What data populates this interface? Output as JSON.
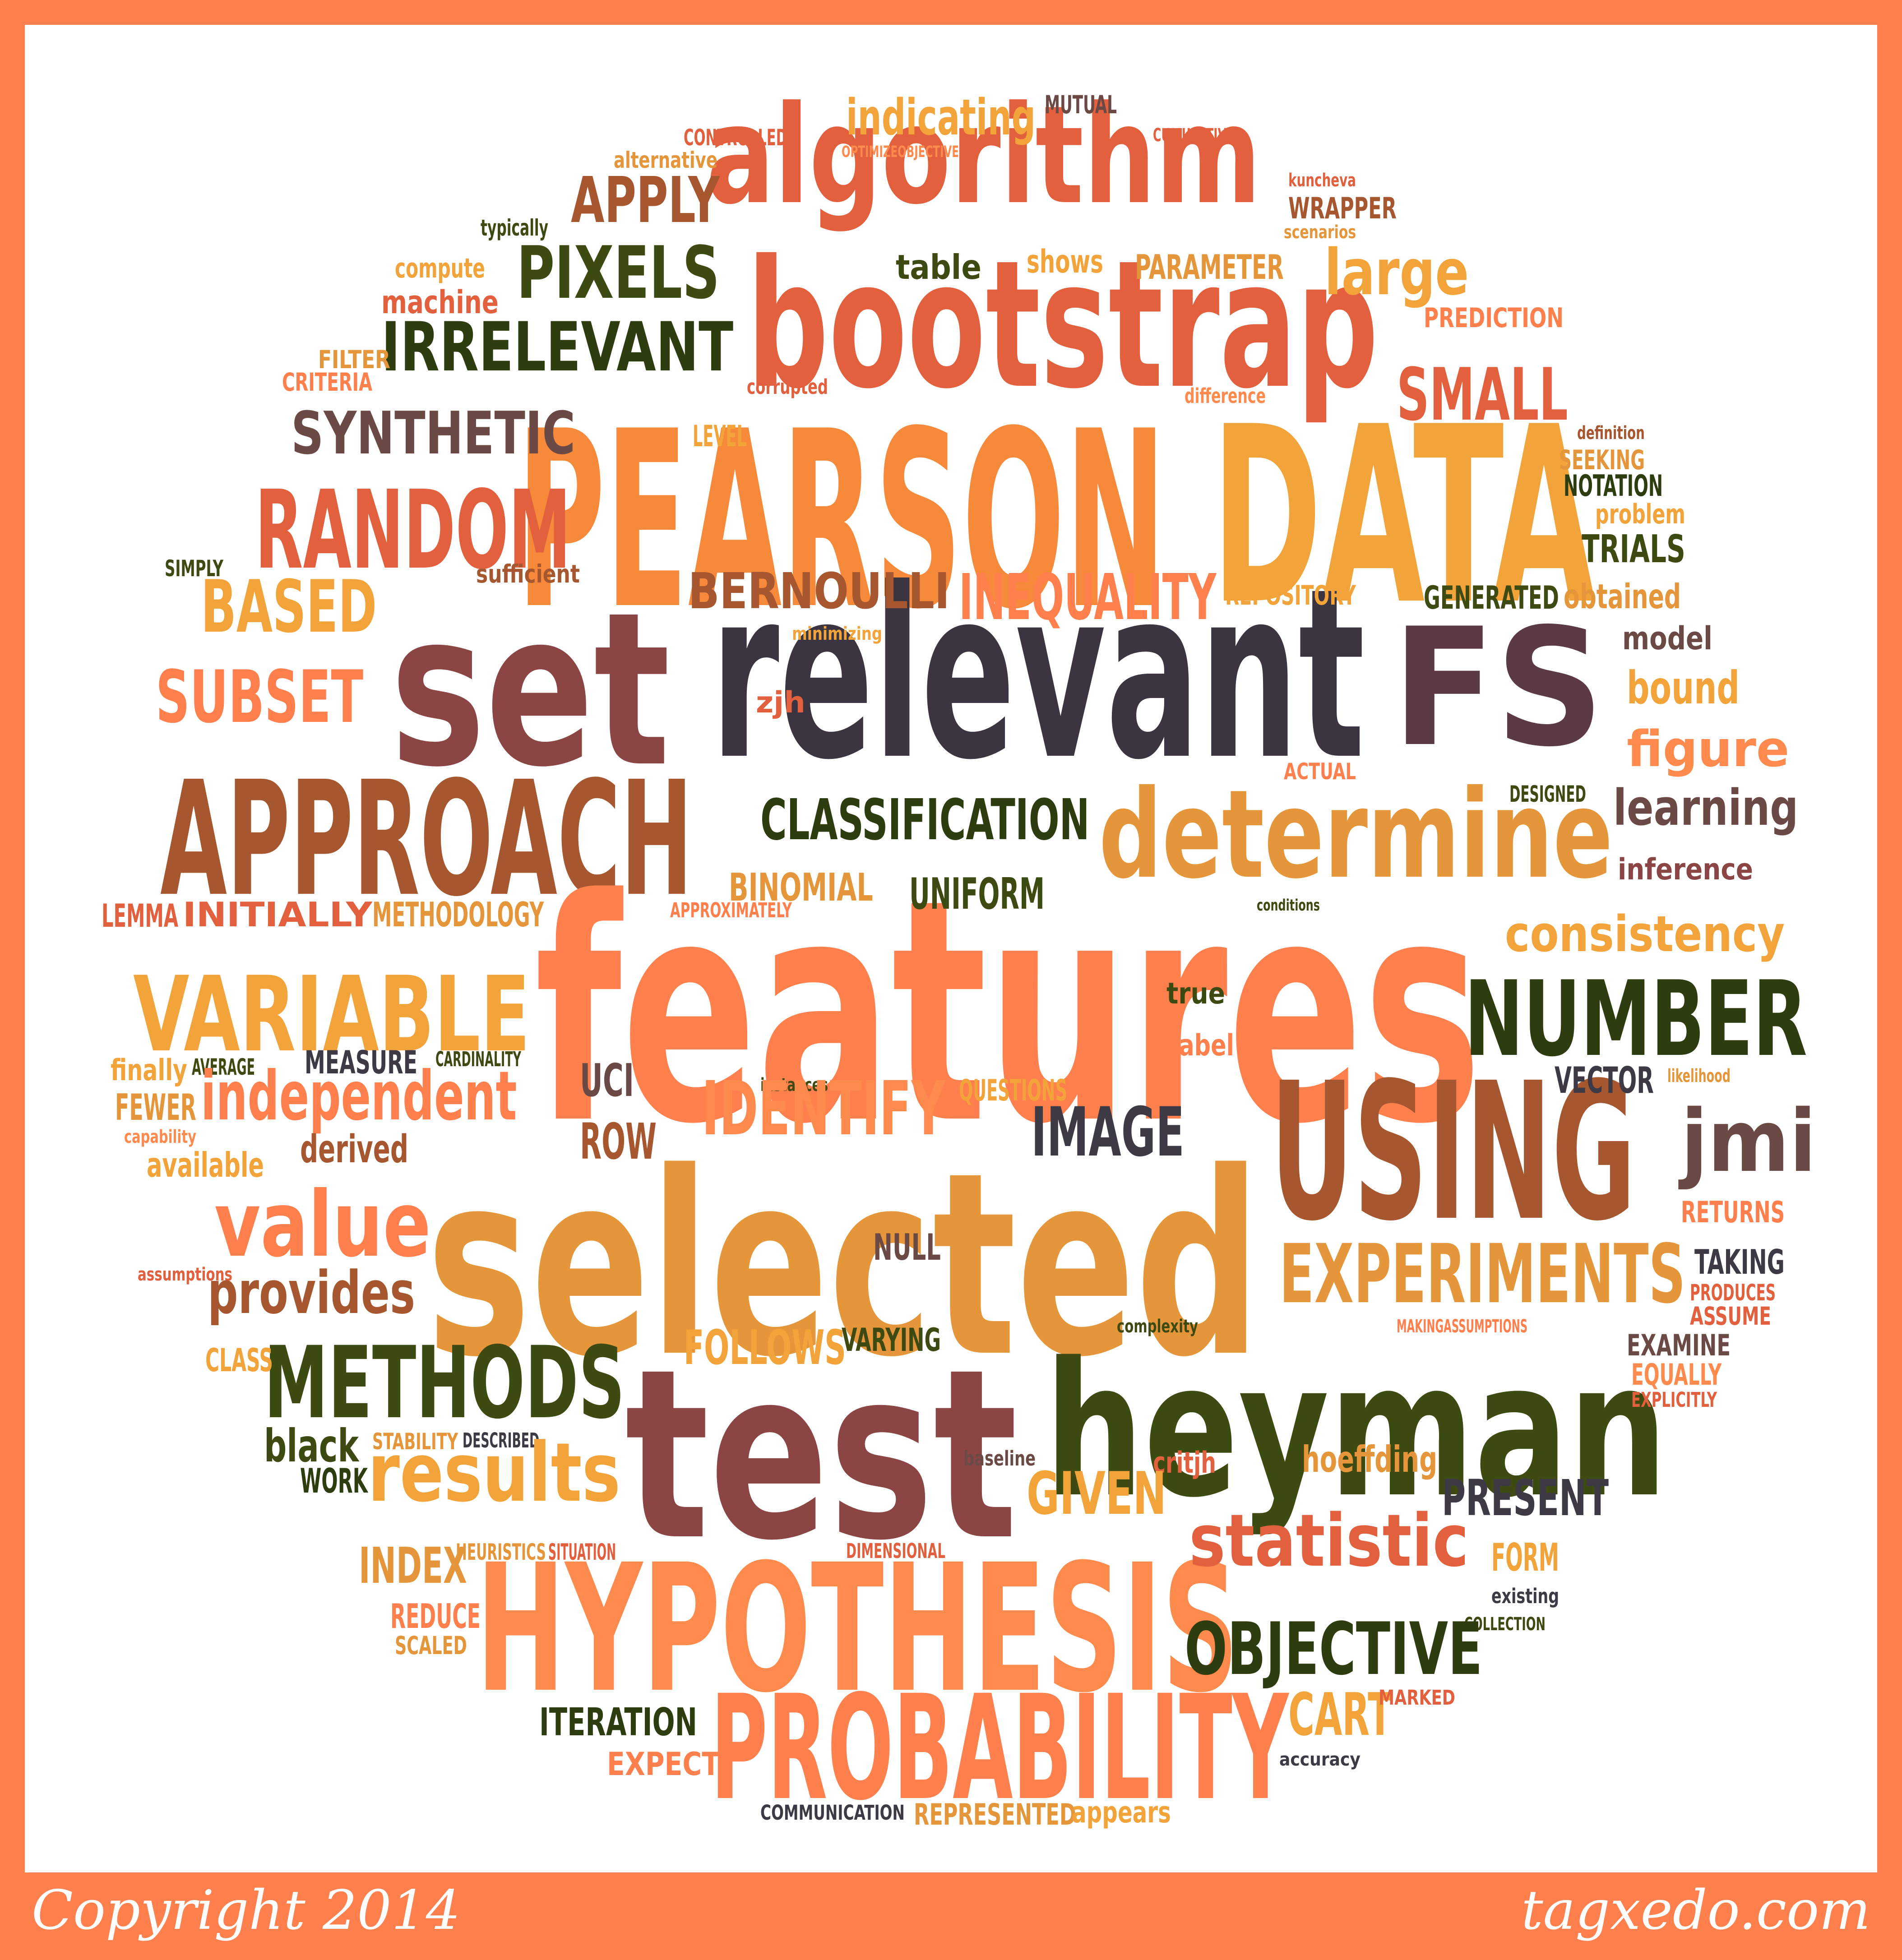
{
  "footer": {
    "copyright": "Copyright 2014",
    "brand": "tagxedo.com"
  },
  "colors": {
    "frame": "#ff7f4d",
    "background": "#ffffff"
  },
  "words": [
    {
      "text": "PEARSON",
      "color": "#f7893a"
    },
    {
      "text": "DATA",
      "color": "#f2a33a"
    },
    {
      "text": "bootstrap",
      "color": "#e2603d"
    },
    {
      "text": "algorithm",
      "color": "#e2603d"
    },
    {
      "text": "relevant",
      "color": "#3a3540"
    },
    {
      "text": "FS",
      "color": "#5b3a45"
    },
    {
      "text": "set",
      "color": "#8b4545"
    },
    {
      "text": "APPROACH",
      "color": "#a6572f"
    },
    {
      "text": "determine",
      "color": "#e6963a"
    },
    {
      "text": "features",
      "color": "#ff7f4d"
    },
    {
      "text": "selected",
      "color": "#e6963a"
    },
    {
      "text": "test",
      "color": "#8b4545"
    },
    {
      "text": "heyman",
      "color": "#3d4a12"
    },
    {
      "text": "USING",
      "color": "#a6572f"
    },
    {
      "text": "HYPOTHESIS",
      "color": "#ff8a4d"
    },
    {
      "text": "PROBABILITY",
      "color": "#ff7f4d"
    },
    {
      "text": "NUMBER",
      "color": "#2d3d10"
    },
    {
      "text": "VARIABLE",
      "color": "#f2a33a"
    },
    {
      "text": "RANDOM",
      "color": "#e2603d"
    },
    {
      "text": "METHODS",
      "color": "#3d4a12"
    },
    {
      "text": "PIXELS",
      "color": "#3d4a12"
    },
    {
      "text": "IRRELEVANT",
      "color": "#2d3d10"
    },
    {
      "text": "SYNTHETIC",
      "color": "#6b4a45"
    },
    {
      "text": "SMALL",
      "color": "#e2603d"
    },
    {
      "text": "large",
      "color": "#f2a33a"
    },
    {
      "text": "APPLY",
      "color": "#a6572f"
    },
    {
      "text": "indicating",
      "color": "#f2a33a"
    },
    {
      "text": "table",
      "color": "#3d4a12"
    },
    {
      "text": "shows",
      "color": "#f2a33a"
    },
    {
      "text": "PARAMETER",
      "color": "#e6963a"
    },
    {
      "text": "machine",
      "color": "#e2603d"
    },
    {
      "text": "compute",
      "color": "#f2a33a"
    },
    {
      "text": "typically",
      "color": "#3d4a12"
    },
    {
      "text": "alternative",
      "color": "#e6963a"
    },
    {
      "text": "CONTROLLED",
      "color": "#e2603d"
    },
    {
      "text": "OPTIMIZEOBJECTIVE",
      "color": "#ff8a4d"
    },
    {
      "text": "MUTUAL",
      "color": "#6b4a45"
    },
    {
      "text": "CUMULATIVE",
      "color": "#e2603d"
    },
    {
      "text": "kuncheva",
      "color": "#e2603d"
    },
    {
      "text": "WRAPPER",
      "color": "#a6572f"
    },
    {
      "text": "scenarios",
      "color": "#e6963a"
    },
    {
      "text": "PREDICTION",
      "color": "#ff7f4d"
    },
    {
      "text": "FILTER",
      "color": "#e6963a"
    },
    {
      "text": "CRITERIA",
      "color": "#ff7f4d"
    },
    {
      "text": "corrupted",
      "color": "#e2603d"
    },
    {
      "text": "difference",
      "color": "#ff8a4d"
    },
    {
      "text": "LEVEL",
      "color": "#f2a33a"
    },
    {
      "text": "definition",
      "color": "#a6572f"
    },
    {
      "text": "SEEKING",
      "color": "#e6963a"
    },
    {
      "text": "NOTATION",
      "color": "#2d3d10"
    },
    {
      "text": "problem",
      "color": "#f2a33a"
    },
    {
      "text": "TRIALS",
      "color": "#3d4a12"
    },
    {
      "text": "SIMPLY",
      "color": "#3d4a12"
    },
    {
      "text": "sufficient",
      "color": "#a6572f"
    },
    {
      "text": "BERNOULLI",
      "color": "#a6572f"
    },
    {
      "text": "INEQUALITY",
      "color": "#ff7f4d"
    },
    {
      "text": "REPOSITORY",
      "color": "#f2a33a"
    },
    {
      "text": "GENERATED",
      "color": "#3d4a12"
    },
    {
      "text": "obtained",
      "color": "#e6963a"
    },
    {
      "text": "BASED",
      "color": "#f2a33a"
    },
    {
      "text": "SUBSET",
      "color": "#ff7f4d"
    },
    {
      "text": "minimizing",
      "color": "#f2a33a"
    },
    {
      "text": "model",
      "color": "#6b4a45"
    },
    {
      "text": "bound",
      "color": "#f2a33a"
    },
    {
      "text": "figure",
      "color": "#ff8a4d"
    },
    {
      "text": "zjh",
      "color": "#e2603d"
    },
    {
      "text": "ACTUAL",
      "color": "#ff7f4d"
    },
    {
      "text": "DESIGNED",
      "color": "#3d4a12"
    },
    {
      "text": "learning",
      "color": "#6b4a45"
    },
    {
      "text": "CLASSIFICATION",
      "color": "#2d3d10"
    },
    {
      "text": "BINOMIAL",
      "color": "#e6963a"
    },
    {
      "text": "UNIFORM",
      "color": "#3d4a12"
    },
    {
      "text": "inference",
      "color": "#8b4545"
    },
    {
      "text": "consistency",
      "color": "#f2a33a"
    },
    {
      "text": "conditions",
      "color": "#3d4a12"
    },
    {
      "text": "LEMMA",
      "color": "#e2603d"
    },
    {
      "text": "INITIALLY",
      "color": "#e2603d"
    },
    {
      "text": "METHODOLOGY",
      "color": "#e6963a"
    },
    {
      "text": "APPROXIMATELY",
      "color": "#ff7f4d"
    },
    {
      "text": "true",
      "color": "#3d4a12"
    },
    {
      "text": "label",
      "color": "#ff7f4d"
    },
    {
      "text": "finally",
      "color": "#f2a33a"
    },
    {
      "text": "AVERAGE",
      "color": "#3d4a12"
    },
    {
      "text": "MEASURE",
      "color": "#3d3a45"
    },
    {
      "text": "CARDINALITY",
      "color": "#3d4a12"
    },
    {
      "text": "UCI",
      "color": "#6b4a45"
    },
    {
      "text": "instances",
      "color": "#3d4a12"
    },
    {
      "text": "QUESTIONS",
      "color": "#f2a33a"
    },
    {
      "text": "VECTOR",
      "color": "#3d3a45"
    },
    {
      "text": "likelihood",
      "color": "#e6963a"
    },
    {
      "text": "FEWER",
      "color": "#e6963a"
    },
    {
      "text": "independent",
      "color": "#ff7f4d"
    },
    {
      "text": "capability",
      "color": "#ff8a4d"
    },
    {
      "text": "available",
      "color": "#f2a33a"
    },
    {
      "text": "derived",
      "color": "#a6572f"
    },
    {
      "text": "ROW",
      "color": "#a6572f"
    },
    {
      "text": "IDENTIFY",
      "color": "#ff8a4d"
    },
    {
      "text": "IMAGE",
      "color": "#3d3a45"
    },
    {
      "text": "jmi",
      "color": "#6b4a45"
    },
    {
      "text": "RETURNS",
      "color": "#ff7f4d"
    },
    {
      "text": "value",
      "color": "#ff7f4d"
    },
    {
      "text": "assumptions",
      "color": "#e2603d"
    },
    {
      "text": "NULL",
      "color": "#6b4a45"
    },
    {
      "text": "EXPERIMENTS",
      "color": "#e6963a"
    },
    {
      "text": "TAKING",
      "color": "#3d3a45"
    },
    {
      "text": "PRODUCES",
      "color": "#e2603d"
    },
    {
      "text": "ASSUME",
      "color": "#e2603d"
    },
    {
      "text": "provides",
      "color": "#a6572f"
    },
    {
      "text": "complexity",
      "color": "#3d4a12"
    },
    {
      "text": "MAKINGASSUMPTIONS",
      "color": "#ff7f4d"
    },
    {
      "text": "EXAMINE",
      "color": "#6b4a45"
    },
    {
      "text": "EQUALLY",
      "color": "#ff8a4d"
    },
    {
      "text": "EXPLICITLY",
      "color": "#e2603d"
    },
    {
      "text": "CLASS",
      "color": "#f2a33a"
    },
    {
      "text": "FOLLOWS",
      "color": "#f2a33a"
    },
    {
      "text": "VARYING",
      "color": "#3d4a12"
    },
    {
      "text": "black",
      "color": "#3d4a12"
    },
    {
      "text": "WORK",
      "color": "#2d3d10"
    },
    {
      "text": "STABILITY",
      "color": "#e6963a"
    },
    {
      "text": "DESCRIBED",
      "color": "#3d3a45"
    },
    {
      "text": "results",
      "color": "#f2a33a"
    },
    {
      "text": "baseline",
      "color": "#6b4a45"
    },
    {
      "text": "critjh",
      "color": "#e2603d"
    },
    {
      "text": "hoeffding",
      "color": "#e6963a"
    },
    {
      "text": "PRESENT",
      "color": "#3d3a45"
    },
    {
      "text": "GIVEN",
      "color": "#f2a33a"
    },
    {
      "text": "statistic",
      "color": "#e2603d"
    },
    {
      "text": "FORM",
      "color": "#f2a33a"
    },
    {
      "text": "existing",
      "color": "#3d3a45"
    },
    {
      "text": "COLLECTION",
      "color": "#3d4a12"
    },
    {
      "text": "INDEX",
      "color": "#e6963a"
    },
    {
      "text": "HEURISTICS",
      "color": "#e6963a"
    },
    {
      "text": "SITUATION",
      "color": "#e2603d"
    },
    {
      "text": "DIMENSIONAL",
      "color": "#e2603d"
    },
    {
      "text": "REDUCE",
      "color": "#ff7f4d"
    },
    {
      "text": "SCALED",
      "color": "#e6963a"
    },
    {
      "text": "OBJECTIVE",
      "color": "#2d3d10"
    },
    {
      "text": "ITERATION",
      "color": "#2d3d10"
    },
    {
      "text": "CART",
      "color": "#f2a33a"
    },
    {
      "text": "MARKED",
      "color": "#e2603d"
    },
    {
      "text": "EXPECT",
      "color": "#ff7f4d"
    },
    {
      "text": "accuracy",
      "color": "#3d3a45"
    },
    {
      "text": "COMMUNICATION",
      "color": "#3d3a45"
    },
    {
      "text": "REPRESENTED",
      "color": "#e6963a"
    },
    {
      "text": "appears",
      "color": "#f2a33a"
    }
  ]
}
